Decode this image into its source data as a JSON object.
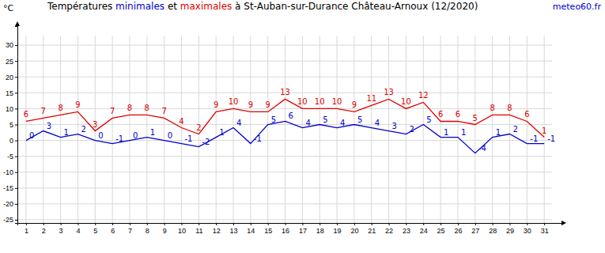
{
  "chart_data": {
    "type": "line",
    "title": "Températures minimales et maximales à St-Auban-sur-Durance Château-Arnoux (12/2020)",
    "ylabel": "°C",
    "source": "meteo60.fr",
    "x": [
      1,
      2,
      3,
      4,
      5,
      6,
      7,
      8,
      9,
      10,
      11,
      12,
      13,
      14,
      15,
      16,
      17,
      18,
      19,
      20,
      21,
      22,
      23,
      24,
      25,
      26,
      27,
      28,
      29,
      30,
      31
    ],
    "xlim": [
      0.5,
      32
    ],
    "xticks": [
      1,
      2,
      3,
      4,
      5,
      6,
      7,
      8,
      9,
      10,
      11,
      12,
      13,
      14,
      15,
      16,
      17,
      18,
      19,
      20,
      21,
      22,
      23,
      24,
      25,
      26,
      27,
      28,
      29,
      30,
      31
    ],
    "ylim": [
      -26,
      36
    ],
    "yticks": [
      -25,
      -20,
      -15,
      -10,
      -5,
      0,
      5,
      10,
      15,
      20,
      25,
      30
    ],
    "grid": true,
    "data_labels": true,
    "series": [
      {
        "name": "minimales",
        "color": "#0000cc",
        "marker": "none",
        "line_style": "solid",
        "values": [
          0,
          3,
          1,
          2,
          0,
          -1,
          0,
          1,
          0,
          -1,
          -2,
          1,
          4,
          -1,
          5,
          6,
          4,
          5,
          4,
          5,
          4,
          3,
          2,
          5,
          1,
          1,
          -4,
          1,
          2,
          -1,
          -1
        ]
      },
      {
        "name": "maximales",
        "color": "#e00000",
        "marker": "none",
        "line_style": "solid",
        "values": [
          6,
          7,
          8,
          9,
          3,
          7,
          8,
          8,
          7,
          4,
          2,
          9,
          10,
          9,
          9,
          13,
          10,
          10,
          10,
          9,
          11,
          13,
          10,
          12,
          6,
          6,
          5,
          8,
          8,
          6,
          1
        ]
      }
    ]
  }
}
